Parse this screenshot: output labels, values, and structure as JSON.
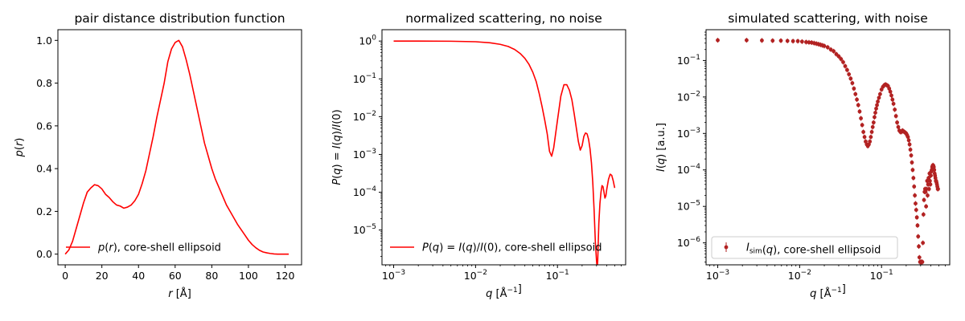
{
  "chart_data": [
    {
      "type": "line",
      "title": "pair distance distribution function",
      "xlabel": "r [Å]",
      "ylabel": "p(r)",
      "xlim": [
        -4,
        129
      ],
      "ylim": [
        -0.05,
        1.05
      ],
      "xticks": [
        0,
        20,
        40,
        60,
        80,
        100,
        120
      ],
      "yticks": [
        0.0,
        0.2,
        0.4,
        0.6,
        0.8,
        1.0
      ],
      "xtick_labels": [
        "0",
        "20",
        "40",
        "60",
        "80",
        "100",
        "120"
      ],
      "ytick_labels": [
        "0.0",
        "0.2",
        "0.4",
        "0.6",
        "0.8",
        "1.0"
      ],
      "legend_position": "lower-left",
      "color": "#ff0000",
      "series": [
        {
          "name": "p(r), core-shell ellipsoid",
          "x": [
            0,
            2,
            4,
            6,
            8,
            10,
            12,
            14,
            16,
            18,
            20,
            22,
            24,
            26,
            28,
            30,
            32,
            34,
            36,
            38,
            40,
            42,
            44,
            46,
            48,
            50,
            52,
            54,
            56,
            58,
            60,
            62,
            64,
            66,
            68,
            70,
            72,
            74,
            76,
            78,
            80,
            82,
            84,
            86,
            88,
            90,
            92,
            94,
            96,
            98,
            100,
            102,
            104,
            106,
            108,
            110,
            112,
            114,
            116,
            118,
            120,
            122
          ],
          "y": [
            0.0,
            0.02,
            0.06,
            0.12,
            0.18,
            0.24,
            0.29,
            0.31,
            0.325,
            0.32,
            0.305,
            0.28,
            0.265,
            0.245,
            0.23,
            0.225,
            0.215,
            0.22,
            0.23,
            0.25,
            0.28,
            0.33,
            0.39,
            0.47,
            0.55,
            0.64,
            0.72,
            0.8,
            0.9,
            0.96,
            0.99,
            1.0,
            0.97,
            0.91,
            0.84,
            0.76,
            0.68,
            0.6,
            0.52,
            0.46,
            0.4,
            0.35,
            0.31,
            0.27,
            0.23,
            0.2,
            0.17,
            0.14,
            0.115,
            0.09,
            0.065,
            0.045,
            0.03,
            0.018,
            0.01,
            0.006,
            0.003,
            0.001,
            0.0,
            0.0,
            0.0,
            0.0
          ]
        }
      ]
    },
    {
      "type": "line",
      "title": "normalized scattering, no noise",
      "xlabel": "q [Å⁻¹]",
      "ylabel": "P(q) = I(q)/I(0)",
      "xscale": "log",
      "yscale": "log",
      "xlim": [
        0.00072,
        0.68
      ],
      "ylim": [
        1.2e-06,
        2.0
      ],
      "xticks": [
        0.001,
        0.01,
        0.1
      ],
      "yticks": [
        1e-05,
        0.0001,
        0.001,
        0.01,
        0.1,
        1
      ],
      "xtick_labels": [
        [
          "10",
          "−3"
        ],
        [
          "10",
          "−2"
        ],
        [
          "10",
          "−1"
        ]
      ],
      "ytick_labels": [
        [
          "10",
          "−5"
        ],
        [
          "10",
          "−4"
        ],
        [
          "10",
          "−3"
        ],
        [
          "10",
          "−2"
        ],
        [
          "10",
          "−1"
        ],
        [
          "10",
          "0"
        ]
      ],
      "legend_position": "lower-left",
      "color": "#ff0000",
      "series": [
        {
          "name": "P(q) = I(q)/I(0), core-shell ellipsoid",
          "x": [
            0.001,
            0.002,
            0.005,
            0.01,
            0.015,
            0.02,
            0.025,
            0.03,
            0.035,
            0.04,
            0.045,
            0.05,
            0.055,
            0.06,
            0.065,
            0.07,
            0.075,
            0.08,
            0.085,
            0.09,
            0.1,
            0.11,
            0.12,
            0.13,
            0.14,
            0.15,
            0.16,
            0.17,
            0.18,
            0.19,
            0.2,
            0.21,
            0.22,
            0.23,
            0.24,
            0.25,
            0.26,
            0.27,
            0.28,
            0.29,
            0.3,
            0.305,
            0.31,
            0.32,
            0.33,
            0.34,
            0.35,
            0.36,
            0.37,
            0.38,
            0.39,
            0.4,
            0.42,
            0.44,
            0.46,
            0.48,
            0.5
          ],
          "y": [
            1.0,
            0.998,
            0.99,
            0.96,
            0.9,
            0.82,
            0.72,
            0.6,
            0.47,
            0.35,
            0.24,
            0.15,
            0.085,
            0.04,
            0.018,
            0.008,
            0.0035,
            0.0012,
            0.0009,
            0.0015,
            0.008,
            0.035,
            0.07,
            0.07,
            0.05,
            0.028,
            0.012,
            0.005,
            0.0022,
            0.0013,
            0.0017,
            0.003,
            0.0037,
            0.0035,
            0.0025,
            0.0014,
            0.0006,
            0.00018,
            3.5e-05,
            5e-06,
            1.5e-06,
            1e-06,
            1.5e-06,
            1.5e-05,
            5e-05,
            0.0001,
            0.00015,
            0.00014,
            0.0001,
            7e-05,
            8e-05,
            0.00012,
            0.00022,
            0.0003,
            0.00028,
            0.0002,
            0.00013
          ]
        }
      ]
    },
    {
      "type": "scatter",
      "title": "simulated scattering, with noise",
      "xlabel": "q [Å⁻¹]",
      "ylabel": "I(q) [a.u.]",
      "xscale": "log",
      "yscale": "log",
      "xlim": [
        0.00072,
        0.68
      ],
      "ylim": [
        2.5e-07,
        0.7
      ],
      "xticks": [
        0.001,
        0.01,
        0.1
      ],
      "yticks": [
        1e-06,
        1e-05,
        0.0001,
        0.001,
        0.01,
        0.1
      ],
      "xtick_labels": [
        [
          "10",
          "−3"
        ],
        [
          "10",
          "−2"
        ],
        [
          "10",
          "−1"
        ]
      ],
      "ytick_labels": [
        [
          "10",
          "−6"
        ],
        [
          "10",
          "−5"
        ],
        [
          "10",
          "−4"
        ],
        [
          "10",
          "−3"
        ],
        [
          "10",
          "−2"
        ],
        [
          "10",
          "−1"
        ]
      ],
      "legend_position": "lower-left",
      "color": "#b22222",
      "series": [
        {
          "name": "I_sim(q), core-shell ellipsoid",
          "x": [
            0.001,
            0.00225,
            0.00346,
            0.00468,
            0.0059,
            0.0071,
            0.0083,
            0.0095,
            0.0107,
            0.012,
            0.013,
            0.014,
            0.015,
            0.016,
            0.017,
            0.018,
            0.019,
            0.02,
            0.022,
            0.024,
            0.026,
            0.028,
            0.03,
            0.032,
            0.034,
            0.036,
            0.038,
            0.04,
            0.042,
            0.044,
            0.046,
            0.048,
            0.05,
            0.052,
            0.054,
            0.056,
            0.058,
            0.06,
            0.062,
            0.064,
            0.066,
            0.068,
            0.07,
            0.072,
            0.074,
            0.076,
            0.078,
            0.08,
            0.082,
            0.084,
            0.086,
            0.088,
            0.09,
            0.093,
            0.096,
            0.1,
            0.104,
            0.108,
            0.112,
            0.116,
            0.12,
            0.124,
            0.128,
            0.132,
            0.136,
            0.14,
            0.145,
            0.15,
            0.155,
            0.16,
            0.165,
            0.17,
            0.175,
            0.18,
            0.185,
            0.19,
            0.195,
            0.2,
            0.205,
            0.21,
            0.215,
            0.22,
            0.225,
            0.23,
            0.235,
            0.24,
            0.245,
            0.25,
            0.255,
            0.26,
            0.265,
            0.27,
            0.275,
            0.28,
            0.285,
            0.29,
            0.295,
            0.3,
            0.305,
            0.31,
            0.315,
            0.32,
            0.325,
            0.33,
            0.335,
            0.34,
            0.345,
            0.35,
            0.355,
            0.36,
            0.365,
            0.37,
            0.375,
            0.38,
            0.385,
            0.39,
            0.395,
            0.4,
            0.405,
            0.41,
            0.415,
            0.42,
            0.425,
            0.43,
            0.435,
            0.44,
            0.445,
            0.45,
            0.455,
            0.46,
            0.465,
            0.47,
            0.475,
            0.48,
            0.485,
            0.49
          ],
          "y": [
            0.36,
            0.36,
            0.355,
            0.35,
            0.35,
            0.345,
            0.34,
            0.34,
            0.33,
            0.32,
            0.315,
            0.31,
            0.3,
            0.29,
            0.28,
            0.27,
            0.26,
            0.25,
            0.23,
            0.2,
            0.18,
            0.15,
            0.13,
            0.11,
            0.09,
            0.07,
            0.055,
            0.042,
            0.032,
            0.024,
            0.017,
            0.012,
            0.0085,
            0.006,
            0.004,
            0.0026,
            0.0017,
            0.0011,
            0.0008,
            0.0006,
            0.0005,
            0.00045,
            0.0005,
            0.0006,
            0.0008,
            0.0011,
            0.0015,
            0.002,
            0.0028,
            0.0037,
            0.0048,
            0.006,
            0.0075,
            0.0095,
            0.012,
            0.016,
            0.019,
            0.021,
            0.022,
            0.021,
            0.02,
            0.017,
            0.014,
            0.011,
            0.0085,
            0.0065,
            0.0045,
            0.003,
            0.002,
            0.0015,
            0.0012,
            0.0011,
            0.0011,
            0.0012,
            0.00115,
            0.0011,
            0.00105,
            0.001,
            0.0009,
            0.0008,
            0.00065,
            0.0005,
            0.00036,
            0.00025,
            0.00016,
            0.0001,
            6e-05,
            3.5e-05,
            2e-05,
            1.2e-05,
            8e-06,
            5e-06,
            3e-06,
            1.5e-06,
            8e-07,
            4e-07,
            3e-07,
            3e-07,
            3e-07,
            3e-07,
            3e-07,
            1e-06,
            6e-06,
            1.5e-05,
            2.5e-05,
            3e-05,
            2.5e-05,
            1e-05,
            3e-05,
            5e-05,
            2e-05,
            4e-05,
            6e-05,
            3e-05,
            8e-05,
            5e-05,
            4e-05,
            7e-05,
            9e-05,
            0.0001,
            0.00012,
            0.00013,
            0.000135,
            0.00013,
            0.00012,
            0.0001,
            8e-05,
            7e-05,
            6e-05,
            5e-05,
            5e-05,
            4.5e-05,
            4e-05,
            3.5e-05,
            3e-05,
            3e-05
          ]
        }
      ]
    }
  ]
}
